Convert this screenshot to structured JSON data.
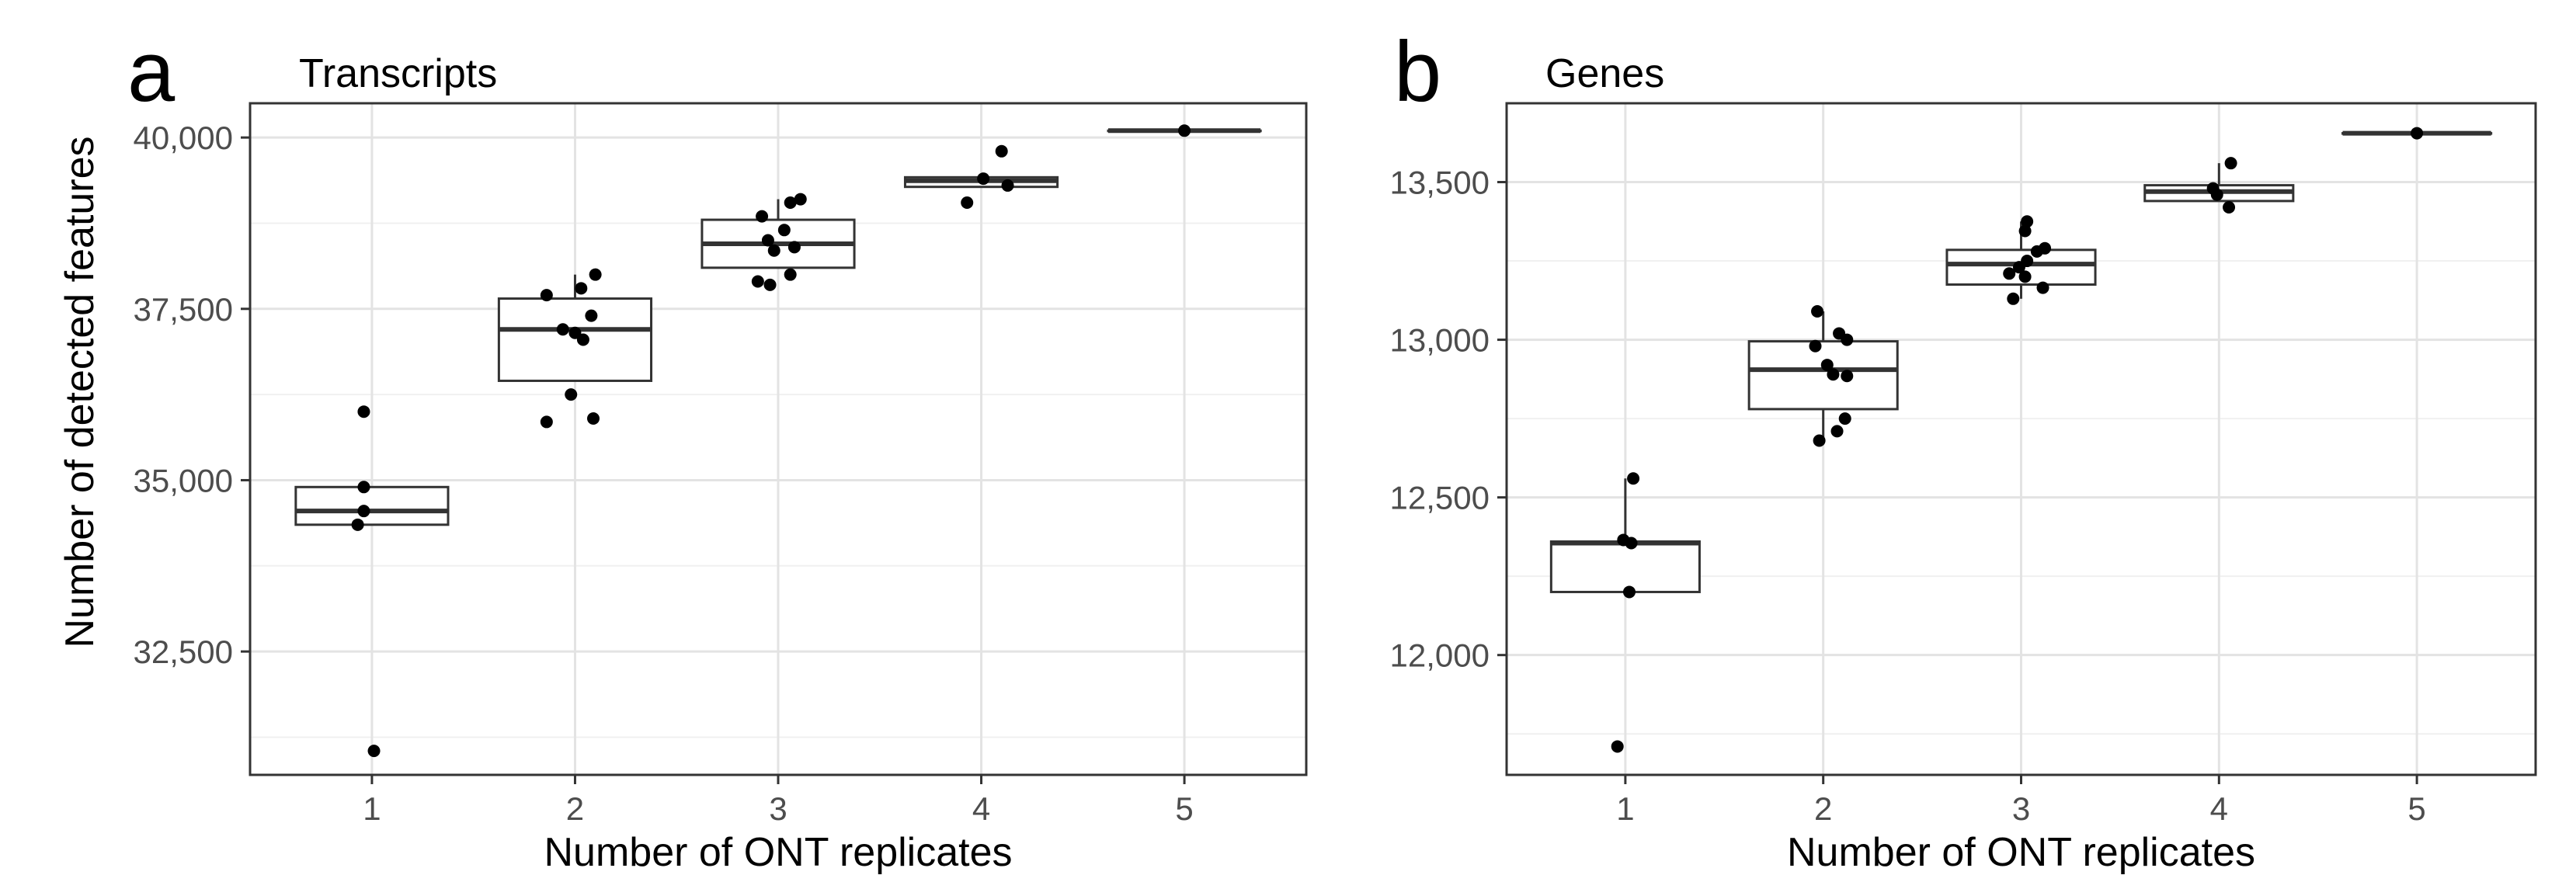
{
  "ylabel": "Number of detected features",
  "chart_data": [
    {
      "type": "box",
      "panel_label": "a",
      "title": "Transcripts",
      "xlabel": "Number of ONT replicates",
      "ylabel": "Number of detected features",
      "categories": [
        "1",
        "2",
        "3",
        "4",
        "5"
      ],
      "ylim": [
        30700,
        40500
      ],
      "yticks": [
        32500,
        35000,
        37500,
        40000
      ],
      "ytick_labels": [
        "32,500",
        "35,000",
        "37,500",
        "40,000"
      ],
      "grid": true,
      "boxes": [
        {
          "category": "1",
          "lower_whisker": 34350,
          "q1": 34350,
          "median": 34550,
          "q3": 34900,
          "upper_whisker": 34900
        },
        {
          "category": "2",
          "lower_whisker": 36450,
          "q1": 36450,
          "median": 37200,
          "q3": 37650,
          "upper_whisker": 38000
        },
        {
          "category": "3",
          "lower_whisker": 38100,
          "q1": 38100,
          "median": 38450,
          "q3": 38800,
          "upper_whisker": 39100
        },
        {
          "category": "4",
          "lower_whisker": 39280,
          "q1": 39280,
          "median": 39370,
          "q3": 39420,
          "upper_whisker": 39420
        },
        {
          "category": "5",
          "lower_whisker": 40100,
          "q1": 40100,
          "median": 40100,
          "q3": 40100,
          "upper_whisker": 40100
        }
      ],
      "points": [
        {
          "x": 0.96,
          "y": 36000
        },
        {
          "x": 0.96,
          "y": 34900
        },
        {
          "x": 0.96,
          "y": 34550
        },
        {
          "x": 0.93,
          "y": 34350
        },
        {
          "x": 1.01,
          "y": 31050
        },
        {
          "x": 1.86,
          "y": 37700
        },
        {
          "x": 2.03,
          "y": 37800
        },
        {
          "x": 2.1,
          "y": 38000
        },
        {
          "x": 2.08,
          "y": 37400
        },
        {
          "x": 1.94,
          "y": 37200
        },
        {
          "x": 2.0,
          "y": 37150
        },
        {
          "x": 2.04,
          "y": 37050
        },
        {
          "x": 1.98,
          "y": 36250
        },
        {
          "x": 1.86,
          "y": 35850
        },
        {
          "x": 2.09,
          "y": 35900
        },
        {
          "x": 2.92,
          "y": 38850
        },
        {
          "x": 3.06,
          "y": 39050
        },
        {
          "x": 3.11,
          "y": 39100
        },
        {
          "x": 3.03,
          "y": 38650
        },
        {
          "x": 2.95,
          "y": 38500
        },
        {
          "x": 3.08,
          "y": 38400
        },
        {
          "x": 2.98,
          "y": 38350
        },
        {
          "x": 3.06,
          "y": 38000
        },
        {
          "x": 2.9,
          "y": 37900
        },
        {
          "x": 2.96,
          "y": 37850
        },
        {
          "x": 4.01,
          "y": 39400
        },
        {
          "x": 4.1,
          "y": 39800
        },
        {
          "x": 4.13,
          "y": 39300
        },
        {
          "x": 3.93,
          "y": 39050
        },
        {
          "x": 5.0,
          "y": 40100
        }
      ]
    },
    {
      "type": "box",
      "panel_label": "b",
      "title": "Genes",
      "xlabel": "Number of ONT replicates",
      "ylabel": "",
      "categories": [
        "1",
        "2",
        "3",
        "4",
        "5"
      ],
      "ylim": [
        11620,
        13750
      ],
      "yticks": [
        12000,
        12500,
        13000,
        13500
      ],
      "ytick_labels": [
        "12,000",
        "12,500",
        "13,000",
        "13,500"
      ],
      "grid": true,
      "boxes": [
        {
          "category": "1",
          "lower_whisker": 12200,
          "q1": 12200,
          "median": 12355,
          "q3": 12360,
          "upper_whisker": 12560
        },
        {
          "category": "2",
          "lower_whisker": 12680,
          "q1": 12780,
          "median": 12905,
          "q3": 12995,
          "upper_whisker": 13090
        },
        {
          "category": "3",
          "lower_whisker": 13130,
          "q1": 13175,
          "median": 13240,
          "q3": 13285,
          "upper_whisker": 13375
        },
        {
          "category": "4",
          "lower_whisker": 13440,
          "q1": 13440,
          "median": 13470,
          "q3": 13490,
          "upper_whisker": 13560
        },
        {
          "category": "5",
          "lower_whisker": 13655,
          "q1": 13655,
          "median": 13655,
          "q3": 13655,
          "upper_whisker": 13655
        }
      ],
      "points": [
        {
          "x": 1.04,
          "y": 12560
        },
        {
          "x": 0.99,
          "y": 12365
        },
        {
          "x": 1.03,
          "y": 12355
        },
        {
          "x": 1.02,
          "y": 12200
        },
        {
          "x": 0.96,
          "y": 11710
        },
        {
          "x": 1.97,
          "y": 13090
        },
        {
          "x": 2.08,
          "y": 13020
        },
        {
          "x": 2.12,
          "y": 13000
        },
        {
          "x": 1.96,
          "y": 12980
        },
        {
          "x": 2.02,
          "y": 12920
        },
        {
          "x": 2.05,
          "y": 12890
        },
        {
          "x": 2.12,
          "y": 12885
        },
        {
          "x": 2.11,
          "y": 12750
        },
        {
          "x": 2.07,
          "y": 12710
        },
        {
          "x": 1.98,
          "y": 12680
        },
        {
          "x": 3.03,
          "y": 13375
        },
        {
          "x": 3.02,
          "y": 13345
        },
        {
          "x": 3.12,
          "y": 13290
        },
        {
          "x": 3.08,
          "y": 13280
        },
        {
          "x": 3.03,
          "y": 13250
        },
        {
          "x": 2.99,
          "y": 13230
        },
        {
          "x": 2.94,
          "y": 13210
        },
        {
          "x": 3.02,
          "y": 13200
        },
        {
          "x": 3.11,
          "y": 13165
        },
        {
          "x": 2.96,
          "y": 13130
        },
        {
          "x": 4.06,
          "y": 13560
        },
        {
          "x": 3.97,
          "y": 13480
        },
        {
          "x": 3.99,
          "y": 13460
        },
        {
          "x": 4.05,
          "y": 13420
        },
        {
          "x": 5.0,
          "y": 13655
        }
      ]
    }
  ]
}
